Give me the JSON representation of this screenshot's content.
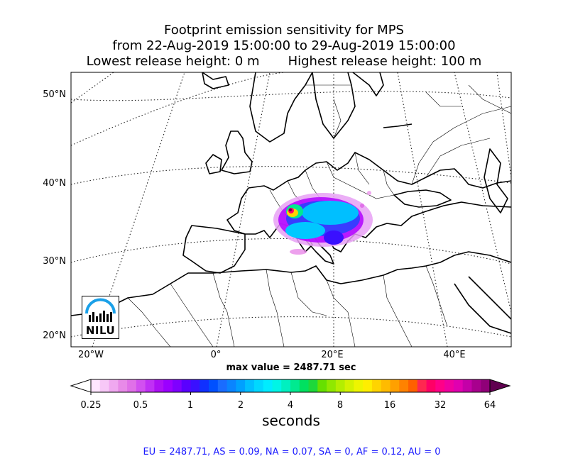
{
  "title": {
    "line1": "Footprint emission sensitivity for MPS",
    "line2": "from 22-Aug-2019 15:00:00 to 29-Aug-2019 15:00:00",
    "line3": "Lowest release height: 0 m       Highest release height: 100 m"
  },
  "lat_labels": [
    "50°N",
    "40°N",
    "30°N",
    "20°N"
  ],
  "lon_labels": [
    "20°W",
    "0°",
    "20°E",
    "40°E"
  ],
  "max_value": "max value = 2487.71 sec",
  "colorbar": {
    "ticks": [
      "0.25",
      "0.5",
      "1",
      "2",
      "4",
      "8",
      "16",
      "32",
      "64"
    ],
    "unit": "seconds",
    "colors": [
      "#ffe6ff",
      "#f7c8f7",
      "#f0a8f0",
      "#e88ae8",
      "#e070e8",
      "#d250f0",
      "#c030f5",
      "#ad10f5",
      "#9b00ff",
      "#7f00ff",
      "#5a00ff",
      "#3a10ff",
      "#1030ff",
      "#0050ff",
      "#1a6cff",
      "#0a84ff",
      "#00a0ff",
      "#00bfff",
      "#00d8ff",
      "#00ecff",
      "#00f5e6",
      "#00f0c0",
      "#00ea90",
      "#00e060",
      "#1ed83a",
      "#66e000",
      "#90e800",
      "#b4ee00",
      "#d4f200",
      "#eef500",
      "#ffee00",
      "#ffd400",
      "#ffbb00",
      "#ffa000",
      "#ff8200",
      "#ff6000",
      "#ff2850",
      "#ff0066",
      "#ff0088",
      "#f000a0",
      "#e000b0",
      "#c400a8",
      "#a8008e",
      "#900078"
    ],
    "under_color": "#ffffff",
    "over_color": "#600050"
  },
  "regions_text": "EU = 2487.71,  AS = 0.09,  NA = 0.07,  SA = 0,  AF = 0.12,  AU = 0",
  "logo_text": "NILU"
}
